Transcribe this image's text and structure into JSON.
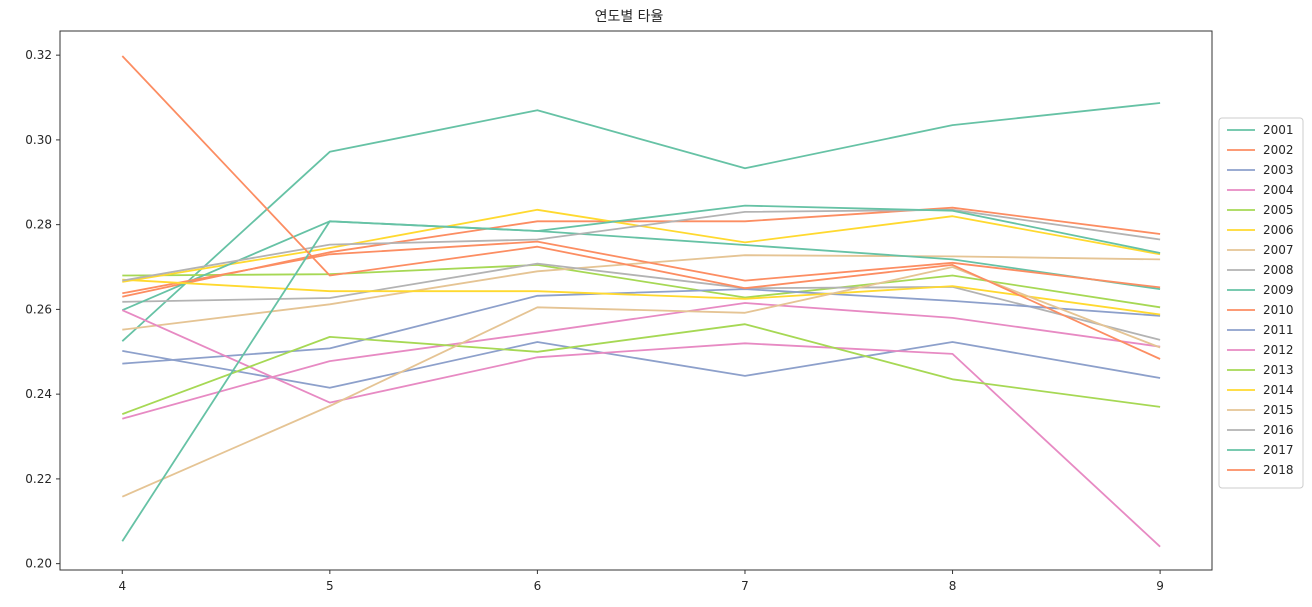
{
  "chart_data": {
    "type": "line",
    "title": "연도별 타율",
    "xlabel": "",
    "ylabel": "",
    "x": [
      4,
      5,
      6,
      7,
      8,
      9
    ],
    "xlim": [
      3.7,
      9.25
    ],
    "ylim": [
      0.1985,
      0.3257
    ],
    "xticks": [
      "4",
      "5",
      "6",
      "7",
      "8",
      "9"
    ],
    "yticks": [
      0.2,
      0.22,
      0.24,
      0.26,
      0.28,
      0.3,
      0.32
    ],
    "ytick_labels": [
      "0.20",
      "0.22",
      "0.24",
      "0.26",
      "0.28",
      "0.30",
      "0.32"
    ],
    "grid": false,
    "legend_position": "right",
    "palette": [
      "#66c2a5",
      "#fc8d62",
      "#8da0cb",
      "#e78ac3",
      "#a6d854",
      "#ffd92f",
      "#e5c494",
      "#b3b3b3"
    ],
    "series": [
      {
        "name": "2001",
        "values": [
          0.2525,
          0.2972,
          0.307,
          0.2933,
          0.3035,
          0.3087
        ]
      },
      {
        "name": "2002",
        "values": [
          0.263,
          0.2735,
          0.2808,
          0.2808,
          0.284,
          0.2778
        ]
      },
      {
        "name": "2003",
        "values": [
          0.2502,
          0.2415,
          0.2523,
          0.2443,
          0.2523,
          0.2438
        ]
      },
      {
        "name": "2004",
        "values": [
          0.2342,
          0.2478,
          0.2545,
          0.2615,
          0.258,
          0.2512
        ]
      },
      {
        "name": "2005",
        "values": [
          0.268,
          0.2683,
          0.2705,
          0.2628,
          0.268,
          0.2605
        ]
      },
      {
        "name": "2006",
        "values": [
          0.2665,
          0.2745,
          0.2835,
          0.2758,
          0.282,
          0.273
        ]
      },
      {
        "name": "2007",
        "values": [
          0.2552,
          0.2612,
          0.269,
          0.2728,
          0.2725,
          0.2718
        ]
      },
      {
        "name": "2008",
        "values": [
          0.2618,
          0.2627,
          0.2708,
          0.265,
          0.2653,
          0.2528
        ]
      },
      {
        "name": "2009",
        "values": [
          0.2598,
          0.2808,
          0.2785,
          0.2752,
          0.2718,
          0.2648
        ]
      },
      {
        "name": "2010",
        "values": [
          0.2638,
          0.273,
          0.276,
          0.2668,
          0.271,
          0.2652
        ]
      },
      {
        "name": "2011",
        "values": [
          0.2472,
          0.2508,
          0.2632,
          0.2648,
          0.262,
          0.2585
        ]
      },
      {
        "name": "2012",
        "values": [
          0.2598,
          0.238,
          0.2487,
          0.252,
          0.2495,
          0.204
        ]
      },
      {
        "name": "2013",
        "values": [
          0.2353,
          0.2535,
          0.25,
          0.2565,
          0.2435,
          0.237
        ]
      },
      {
        "name": "2014",
        "values": [
          0.267,
          0.2643,
          0.2643,
          0.2625,
          0.2655,
          0.2588
        ]
      },
      {
        "name": "2015",
        "values": [
          0.2158,
          0.2372,
          0.2605,
          0.2592,
          0.27,
          0.251
        ]
      },
      {
        "name": "2016",
        "values": [
          0.2668,
          0.2753,
          0.2765,
          0.283,
          0.2835,
          0.2765
        ]
      },
      {
        "name": "2017",
        "values": [
          0.2053,
          0.2808,
          0.2785,
          0.2845,
          0.2833,
          0.2733
        ]
      },
      {
        "name": "2018",
        "values": [
          0.3198,
          0.268,
          0.2748,
          0.265,
          0.2705,
          0.2483
        ]
      }
    ]
  }
}
